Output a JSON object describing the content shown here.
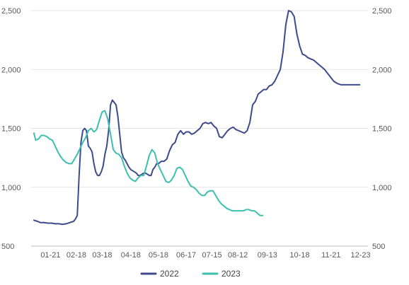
{
  "chart_data": {
    "type": "line",
    "title": "",
    "xlabel": "",
    "ylabel": "",
    "ylim": [
      500,
      2500
    ],
    "yticks": [
      "500",
      "1,000",
      "1,500",
      "2,000",
      "2,500"
    ],
    "ytick_values": [
      500,
      1000,
      1500,
      2000,
      2500
    ],
    "xticks": [
      "01-21",
      "02-18",
      "03-18",
      "04-18",
      "05-18",
      "06-17",
      "07-15",
      "08-12",
      "09-13",
      "10-18",
      "11-21",
      "12-23"
    ],
    "xtick_days": [
      21,
      49,
      77,
      108,
      138,
      168,
      196,
      224,
      256,
      291,
      325,
      357
    ],
    "x_unit": "day of year",
    "xlim": [
      0,
      365
    ],
    "grid": "horizontal",
    "legend_position": "bottom",
    "colors": {
      "2022": "#3d4b8c",
      "2023": "#3cc0b0",
      "grid": "#e6e6e6",
      "axis": "#bfbfbf"
    },
    "series": [
      {
        "name": "2022",
        "color": "#3d4b8c",
        "x": [
          3,
          7,
          10,
          14,
          18,
          22,
          26,
          30,
          34,
          38,
          42,
          46,
          48,
          50,
          52,
          54,
          56,
          58,
          60,
          62,
          64,
          66,
          68,
          70,
          72,
          74,
          76,
          78,
          80,
          82,
          84,
          86,
          88,
          90,
          92,
          94,
          96,
          98,
          100,
          102,
          104,
          106,
          108,
          110,
          112,
          114,
          116,
          118,
          120,
          122,
          124,
          126,
          128,
          130,
          132,
          134,
          136,
          138,
          141,
          144,
          147,
          150,
          153,
          156,
          159,
          162,
          165,
          168,
          171,
          174,
          177,
          180,
          183,
          186,
          189,
          192,
          195,
          198,
          201,
          204,
          207,
          210,
          213,
          216,
          219,
          222,
          225,
          228,
          231,
          234,
          237,
          240,
          243,
          246,
          249,
          252,
          255,
          258,
          261,
          264,
          267,
          270,
          273,
          276,
          279,
          282,
          285,
          288,
          291,
          294,
          297,
          300,
          303,
          306,
          309,
          312,
          315,
          318,
          320,
          322,
          324,
          326,
          328,
          330,
          332,
          334,
          336,
          338,
          340,
          342,
          344,
          346,
          348,
          350,
          352,
          354,
          356
        ],
        "values": [
          720,
          710,
          700,
          700,
          695,
          695,
          690,
          690,
          685,
          690,
          700,
          710,
          730,
          760,
          1100,
          1380,
          1480,
          1500,
          1480,
          1350,
          1330,
          1300,
          1200,
          1130,
          1100,
          1100,
          1130,
          1180,
          1280,
          1350,
          1480,
          1700,
          1740,
          1720,
          1700,
          1600,
          1450,
          1300,
          1250,
          1230,
          1200,
          1170,
          1150,
          1140,
          1130,
          1120,
          1100,
          1100,
          1110,
          1120,
          1120,
          1110,
          1100,
          1100,
          1150,
          1170,
          1200,
          1200,
          1220,
          1220,
          1240,
          1310,
          1360,
          1380,
          1450,
          1480,
          1450,
          1470,
          1470,
          1450,
          1460,
          1480,
          1500,
          1540,
          1550,
          1540,
          1550,
          1520,
          1500,
          1430,
          1420,
          1450,
          1480,
          1500,
          1510,
          1490,
          1480,
          1470,
          1460,
          1480,
          1550,
          1700,
          1730,
          1790,
          1810,
          1830,
          1830,
          1860,
          1870,
          1900,
          1950,
          2000,
          2150,
          2380,
          2500,
          2490,
          2450,
          2300,
          2200,
          2130,
          2120,
          2100,
          2090,
          2080,
          2060,
          2040,
          2020,
          2000,
          1980,
          1960,
          1940,
          1920,
          1900,
          1890,
          1880,
          1875,
          1870,
          1870,
          1870,
          1870,
          1870,
          1870,
          1870,
          1870,
          1870,
          1870,
          1870
        ]
      },
      {
        "name": "2023",
        "color": "#3cc0b0",
        "x": [
          3,
          5,
          8,
          11,
          14,
          17,
          20,
          23,
          26,
          29,
          32,
          35,
          38,
          41,
          44,
          47,
          50,
          53,
          56,
          59,
          62,
          65,
          68,
          71,
          74,
          77,
          80,
          83,
          86,
          89,
          92,
          95,
          98,
          101,
          104,
          107,
          110,
          113,
          116,
          119,
          122,
          125,
          128,
          131,
          134,
          137,
          140,
          143,
          146,
          149,
          152,
          155,
          158,
          161,
          164,
          167,
          170,
          173,
          176,
          179,
          182,
          185,
          188,
          191,
          194,
          197,
          200,
          203,
          206,
          209,
          212,
          215,
          218,
          221,
          224,
          227,
          230,
          233,
          236,
          239,
          242,
          245,
          248,
          251
        ],
        "values": [
          1460,
          1400,
          1410,
          1440,
          1440,
          1430,
          1410,
          1400,
          1350,
          1300,
          1260,
          1230,
          1210,
          1200,
          1200,
          1240,
          1280,
          1330,
          1380,
          1420,
          1480,
          1500,
          1470,
          1490,
          1570,
          1640,
          1650,
          1580,
          1450,
          1320,
          1290,
          1280,
          1250,
          1180,
          1120,
          1080,
          1060,
          1050,
          1080,
          1100,
          1100,
          1180,
          1270,
          1320,
          1290,
          1200,
          1150,
          1100,
          1050,
          1040,
          1060,
          1100,
          1160,
          1170,
          1150,
          1100,
          1050,
          1010,
          1000,
          980,
          950,
          930,
          930,
          960,
          970,
          970,
          930,
          890,
          860,
          840,
          820,
          810,
          800,
          800,
          800,
          800,
          800,
          810,
          810,
          800,
          800,
          780,
          760,
          760
        ]
      }
    ]
  }
}
